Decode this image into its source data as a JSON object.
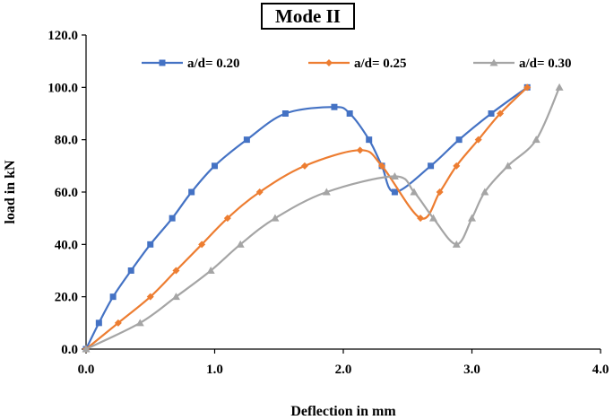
{
  "chart_data": {
    "type": "line",
    "title": "Mode II",
    "xlabel": "Deflection in mm",
    "ylabel": "load in kN",
    "xlim": [
      0,
      4
    ],
    "ylim": [
      0,
      120
    ],
    "xticks": [
      "0.0",
      "1.0",
      "2.0",
      "3.0",
      "4.0"
    ],
    "yticks": [
      "0.0",
      "20.0",
      "40.0",
      "60.0",
      "80.0",
      "100.0",
      "120.0"
    ],
    "grid": false,
    "legend_position": "top",
    "series": [
      {
        "name": "a/d= 0.20",
        "color": "#4472C4",
        "marker": "square",
        "x": [
          0.0,
          0.1,
          0.21,
          0.35,
          0.5,
          0.67,
          0.82,
          1.0,
          1.25,
          1.55,
          1.93,
          2.05,
          2.2,
          2.3,
          2.4,
          2.68,
          2.9,
          3.15,
          3.43
        ],
        "y": [
          0,
          10,
          20,
          30,
          40,
          50,
          60,
          70,
          80,
          90,
          92.5,
          90,
          80,
          70,
          60,
          70,
          80,
          90,
          100
        ]
      },
      {
        "name": "a/d= 0.25",
        "color": "#ED7D31",
        "marker": "diamond",
        "x": [
          0.0,
          0.25,
          0.5,
          0.7,
          0.9,
          1.1,
          1.35,
          1.7,
          2.13,
          2.3,
          2.6,
          2.75,
          2.88,
          3.05,
          3.22,
          3.43
        ],
        "y": [
          0,
          10,
          20,
          30,
          40,
          50,
          60,
          70,
          76,
          70,
          50,
          60,
          70,
          80,
          90,
          100
        ]
      },
      {
        "name": "a/d= 0.30",
        "color": "#A5A5A5",
        "marker": "triangle",
        "x": [
          0.0,
          0.42,
          0.7,
          0.97,
          1.2,
          1.47,
          1.87,
          2.4,
          2.55,
          2.7,
          2.88,
          3.0,
          3.1,
          3.28,
          3.5,
          3.68
        ],
        "y": [
          0,
          10,
          20,
          30,
          40,
          50,
          60,
          66,
          60,
          50,
          40,
          50,
          60,
          70,
          80,
          100
        ]
      }
    ]
  }
}
